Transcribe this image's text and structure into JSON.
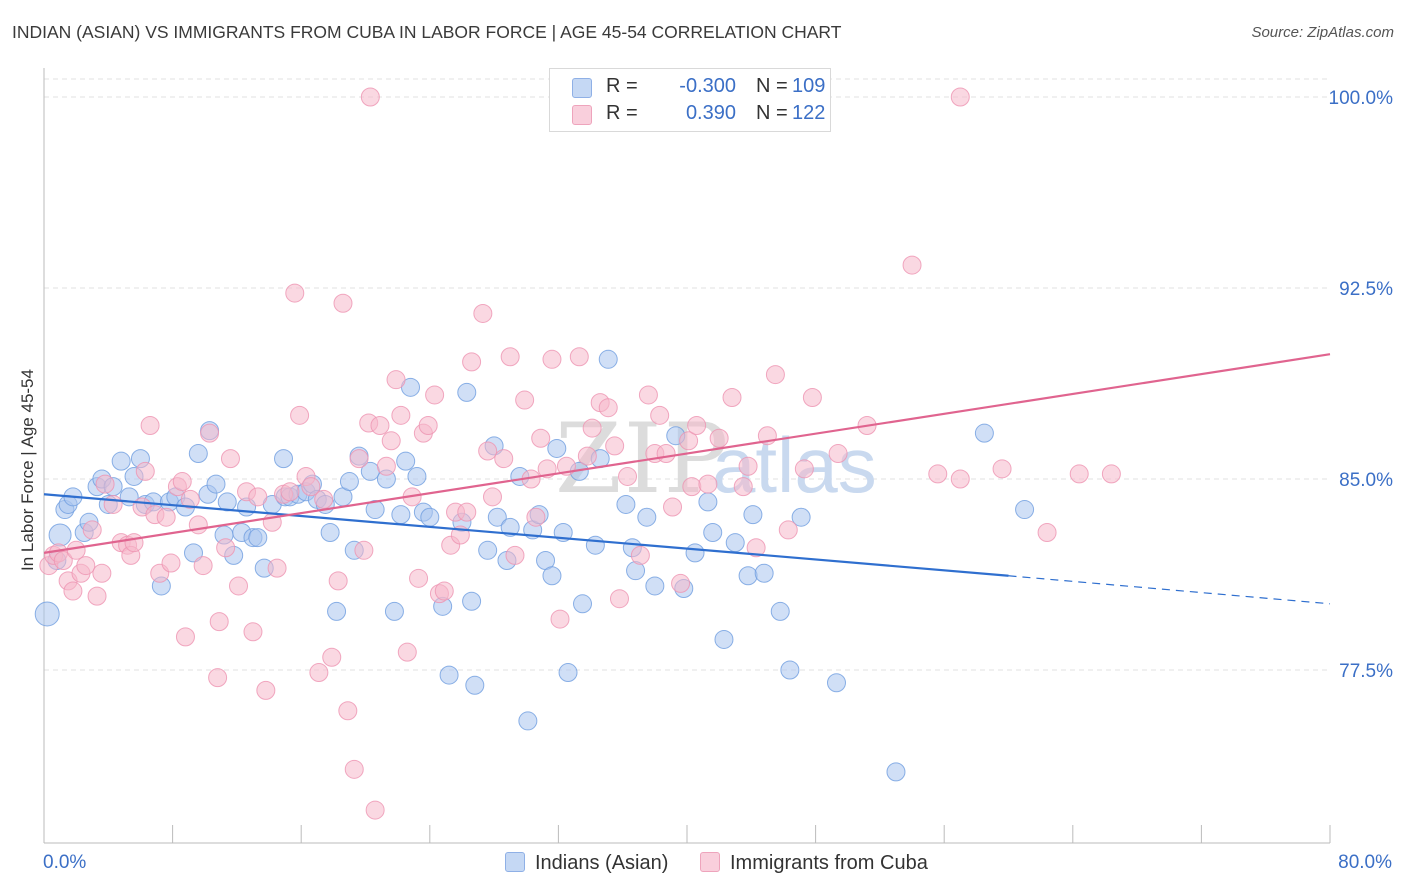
{
  "header": {
    "title": "INDIAN (ASIAN) VS IMMIGRANTS FROM CUBA IN LABOR FORCE | AGE 45-54 CORRELATION CHART",
    "source": "Source: ZipAtlas.com"
  },
  "legend": {
    "rows": [
      {
        "r_label": "R =",
        "r_value": "-0.300",
        "n_label": "N =",
        "n_value": "109",
        "color": "#a9c4ef"
      },
      {
        "r_label": "R =",
        "r_value": "0.390",
        "n_label": "N =",
        "n_value": "122",
        "color": "#f5b8cb"
      }
    ]
  },
  "bottom_legend": {
    "items": [
      {
        "label": "Indians (Asian)",
        "color": "#a9c4ef"
      },
      {
        "label": "Immigrants from Cuba",
        "color": "#f5b8cb"
      }
    ]
  },
  "axes": {
    "ylabel": "In Labor Force | Age 45-54",
    "x_min_label": "0.0%",
    "x_max_label": "80.0%"
  },
  "colors": {
    "blue_fill": "#a9c4ef",
    "blue_line": "#2f6fcf",
    "pink_fill": "#f5b8cb",
    "pink_line": "#e0648f",
    "tick_label": "#3b6fc6",
    "grid": "#e2e2e2"
  },
  "watermark": {
    "zip": "ZIP",
    "atlas": "atlas"
  },
  "chart_data": {
    "type": "scatter",
    "xlim": [
      0,
      80
    ],
    "ylim": [
      71.0,
      100.7
    ],
    "y_ticks": [
      {
        "value": 100.0,
        "label": "100.0%"
      },
      {
        "value": 92.5,
        "label": "92.5%"
      },
      {
        "value": 85.0,
        "label": "85.0%"
      },
      {
        "value": 77.5,
        "label": "77.5%"
      }
    ],
    "x_tick_values": [
      0,
      8,
      16,
      24,
      32,
      40,
      48,
      56,
      64,
      72,
      80
    ],
    "grid": true,
    "series": [
      {
        "name": "Indians (Asian)",
        "r": -0.3,
        "n": 109,
        "trend": {
          "x0": 0,
          "y0": 84.4,
          "x1": 60,
          "y1": 81.2,
          "dash_to_x": 80,
          "dash_to_y": 80.1
        },
        "points": [
          [
            0.2,
            79.7
          ],
          [
            0.8,
            81.8
          ],
          [
            1,
            82.8
          ],
          [
            1.3,
            83.8
          ],
          [
            1.5,
            84
          ],
          [
            1.8,
            84.3
          ],
          [
            2.5,
            82.9
          ],
          [
            2.8,
            83.3
          ],
          [
            3.3,
            84.7
          ],
          [
            3.6,
            85
          ],
          [
            4,
            84
          ],
          [
            4.3,
            84.7
          ],
          [
            4.8,
            85.7
          ],
          [
            5.3,
            84.3
          ],
          [
            5.6,
            85.1
          ],
          [
            6,
            85.8
          ],
          [
            6.3,
            84
          ],
          [
            6.8,
            84.1
          ],
          [
            7.3,
            80.8
          ],
          [
            7.8,
            84.1
          ],
          [
            8.2,
            84.3
          ],
          [
            8.8,
            83.9
          ],
          [
            9.3,
            82.1
          ],
          [
            9.6,
            86
          ],
          [
            10.2,
            84.4
          ],
          [
            10.3,
            86.9
          ],
          [
            10.7,
            84.8
          ],
          [
            11.2,
            82.8
          ],
          [
            11.4,
            84.1
          ],
          [
            11.8,
            82
          ],
          [
            12.3,
            82.9
          ],
          [
            12.6,
            83.9
          ],
          [
            13,
            82.7
          ],
          [
            13.3,
            82.7
          ],
          [
            13.7,
            81.5
          ],
          [
            14.2,
            84
          ],
          [
            14.9,
            85.8
          ],
          [
            15,
            84.3
          ],
          [
            15.3,
            84.3
          ],
          [
            15.8,
            84.4
          ],
          [
            16.3,
            84.5
          ],
          [
            16.7,
            84.8
          ],
          [
            17,
            84.2
          ],
          [
            17.5,
            84
          ],
          [
            17.8,
            82.9
          ],
          [
            18.2,
            79.8
          ],
          [
            18.6,
            84.3
          ],
          [
            19,
            84.9
          ],
          [
            19.3,
            82.2
          ],
          [
            19.6,
            85.9
          ],
          [
            20.3,
            85.3
          ],
          [
            20.6,
            83.8
          ],
          [
            21.3,
            85
          ],
          [
            21.8,
            79.8
          ],
          [
            22.2,
            83.6
          ],
          [
            22.5,
            85.7
          ],
          [
            22.8,
            88.6
          ],
          [
            23.2,
            85.1
          ],
          [
            23.6,
            83.7
          ],
          [
            24,
            83.5
          ],
          [
            24.8,
            80
          ],
          [
            25.2,
            77.3
          ],
          [
            26,
            83.3
          ],
          [
            26.3,
            88.4
          ],
          [
            26.6,
            80.2
          ],
          [
            26.8,
            76.9
          ],
          [
            27.6,
            82.2
          ],
          [
            28,
            86.3
          ],
          [
            28.2,
            83.5
          ],
          [
            28.8,
            81.8
          ],
          [
            29,
            83.1
          ],
          [
            29.6,
            85.1
          ],
          [
            30.1,
            75.5
          ],
          [
            30.4,
            83
          ],
          [
            30.8,
            83.6
          ],
          [
            31.2,
            81.8
          ],
          [
            31.6,
            81.2
          ],
          [
            31.9,
            86.2
          ],
          [
            32.3,
            82.9
          ],
          [
            32.6,
            77.4
          ],
          [
            33.3,
            85.3
          ],
          [
            33.5,
            80.1
          ],
          [
            34.3,
            82.4
          ],
          [
            34.6,
            85.8
          ],
          [
            35.1,
            89.7
          ],
          [
            36.2,
            84
          ],
          [
            36.6,
            82.3
          ],
          [
            36.8,
            81.4
          ],
          [
            37.5,
            83.5
          ],
          [
            38,
            80.8
          ],
          [
            39.3,
            86.7
          ],
          [
            39.8,
            80.7
          ],
          [
            40.5,
            82.1
          ],
          [
            41.3,
            84.1
          ],
          [
            41.6,
            82.9
          ],
          [
            42.3,
            78.7
          ],
          [
            43,
            82.5
          ],
          [
            43.8,
            81.2
          ],
          [
            44.1,
            83.6
          ],
          [
            44.8,
            81.3
          ],
          [
            45.8,
            79.8
          ],
          [
            46.4,
            77.5
          ],
          [
            47.1,
            83.5
          ],
          [
            49.3,
            77
          ],
          [
            53,
            73.5
          ],
          [
            58.5,
            86.8
          ],
          [
            61,
            83.8
          ]
        ]
      },
      {
        "name": "Immigrants from Cuba",
        "r": 0.39,
        "n": 122,
        "trend": {
          "x0": 0,
          "y0": 82.1,
          "x1": 80,
          "y1": 89.9
        },
        "points": [
          [
            0.3,
            81.6
          ],
          [
            0.6,
            82
          ],
          [
            0.9,
            82.1
          ],
          [
            1.2,
            81.8
          ],
          [
            1.5,
            81
          ],
          [
            1.8,
            80.6
          ],
          [
            2,
            82.2
          ],
          [
            2.3,
            81.3
          ],
          [
            2.6,
            81.6
          ],
          [
            3,
            83
          ],
          [
            3.3,
            80.4
          ],
          [
            3.6,
            81.3
          ],
          [
            3.8,
            84.8
          ],
          [
            4.3,
            84
          ],
          [
            4.8,
            82.5
          ],
          [
            5.2,
            82.4
          ],
          [
            5.4,
            82
          ],
          [
            5.6,
            82.5
          ],
          [
            6.1,
            83.9
          ],
          [
            6.3,
            85.3
          ],
          [
            6.6,
            87.1
          ],
          [
            6.9,
            83.6
          ],
          [
            7.2,
            81.3
          ],
          [
            7.6,
            83.5
          ],
          [
            7.9,
            81.7
          ],
          [
            8.3,
            84.7
          ],
          [
            8.6,
            84.9
          ],
          [
            8.8,
            78.8
          ],
          [
            9.1,
            84.2
          ],
          [
            9.6,
            83.2
          ],
          [
            9.9,
            81.6
          ],
          [
            10.3,
            86.8
          ],
          [
            10.8,
            77.2
          ],
          [
            10.9,
            79.4
          ],
          [
            11.3,
            82.3
          ],
          [
            11.6,
            85.8
          ],
          [
            12.1,
            80.8
          ],
          [
            12.6,
            84.5
          ],
          [
            13,
            79
          ],
          [
            13.3,
            84.3
          ],
          [
            13.8,
            76.7
          ],
          [
            14.2,
            83.3
          ],
          [
            14.5,
            81.5
          ],
          [
            14.9,
            84.4
          ],
          [
            15.3,
            84.5
          ],
          [
            15.6,
            92.3
          ],
          [
            15.9,
            87.5
          ],
          [
            16.3,
            85.1
          ],
          [
            16.6,
            84.7
          ],
          [
            17.1,
            77.4
          ],
          [
            17.4,
            84.2
          ],
          [
            17.9,
            78
          ],
          [
            18.3,
            81
          ],
          [
            18.6,
            91.9
          ],
          [
            18.9,
            75.9
          ],
          [
            19.3,
            73.6
          ],
          [
            19.6,
            85.8
          ],
          [
            19.9,
            82.2
          ],
          [
            20.2,
            87.2
          ],
          [
            20.6,
            72
          ],
          [
            20.9,
            87.1
          ],
          [
            21.3,
            85.5
          ],
          [
            21.6,
            86.5
          ],
          [
            21.9,
            88.9
          ],
          [
            22.2,
            87.5
          ],
          [
            22.6,
            78.2
          ],
          [
            22.9,
            84.3
          ],
          [
            23.3,
            81.1
          ],
          [
            23.6,
            86.8
          ],
          [
            23.9,
            87.1
          ],
          [
            24.3,
            88.3
          ],
          [
            24.6,
            80.5
          ],
          [
            24.9,
            80.6
          ],
          [
            25.3,
            82.4
          ],
          [
            25.6,
            83.7
          ],
          [
            25.9,
            82.8
          ],
          [
            26.3,
            83.7
          ],
          [
            26.6,
            89.6
          ],
          [
            27.3,
            91.5
          ],
          [
            27.6,
            86.1
          ],
          [
            27.9,
            84.3
          ],
          [
            28.6,
            85.8
          ],
          [
            29,
            89.8
          ],
          [
            29.3,
            82
          ],
          [
            29.9,
            88.1
          ],
          [
            30.3,
            85
          ],
          [
            30.6,
            83.5
          ],
          [
            30.9,
            86.6
          ],
          [
            31.3,
            85.4
          ],
          [
            31.6,
            89.7
          ],
          [
            32.1,
            79.5
          ],
          [
            32.5,
            85.5
          ],
          [
            33.3,
            89.8
          ],
          [
            33.8,
            85.9
          ],
          [
            34.1,
            87
          ],
          [
            34.6,
            88
          ],
          [
            35.1,
            87.8
          ],
          [
            35.5,
            86.3
          ],
          [
            35.8,
            80.3
          ],
          [
            36.3,
            85.1
          ],
          [
            37.1,
            82
          ],
          [
            37.6,
            88.3
          ],
          [
            38,
            86
          ],
          [
            38.3,
            87.5
          ],
          [
            38.7,
            86
          ],
          [
            39.1,
            83.9
          ],
          [
            39.6,
            80.9
          ],
          [
            40.1,
            86.5
          ],
          [
            40.3,
            84.7
          ],
          [
            40.6,
            87.1
          ],
          [
            41.3,
            84.8
          ],
          [
            42,
            86.6
          ],
          [
            42.8,
            88.2
          ],
          [
            43.5,
            84.7
          ],
          [
            43.8,
            85.5
          ],
          [
            44.3,
            82.3
          ],
          [
            45,
            86.7
          ],
          [
            45.5,
            89.1
          ],
          [
            46.3,
            83
          ],
          [
            47.3,
            85.4
          ],
          [
            47.8,
            88.2
          ],
          [
            49.4,
            86
          ],
          [
            51.2,
            87.1
          ],
          [
            54,
            93.4
          ],
          [
            55.6,
            85.2
          ],
          [
            57,
            85
          ],
          [
            59.6,
            85.4
          ],
          [
            62.4,
            82.9
          ],
          [
            64.4,
            85.2
          ],
          [
            66.4,
            85.2
          ],
          [
            20.3,
            100
          ],
          [
            57,
            100
          ]
        ]
      }
    ]
  }
}
